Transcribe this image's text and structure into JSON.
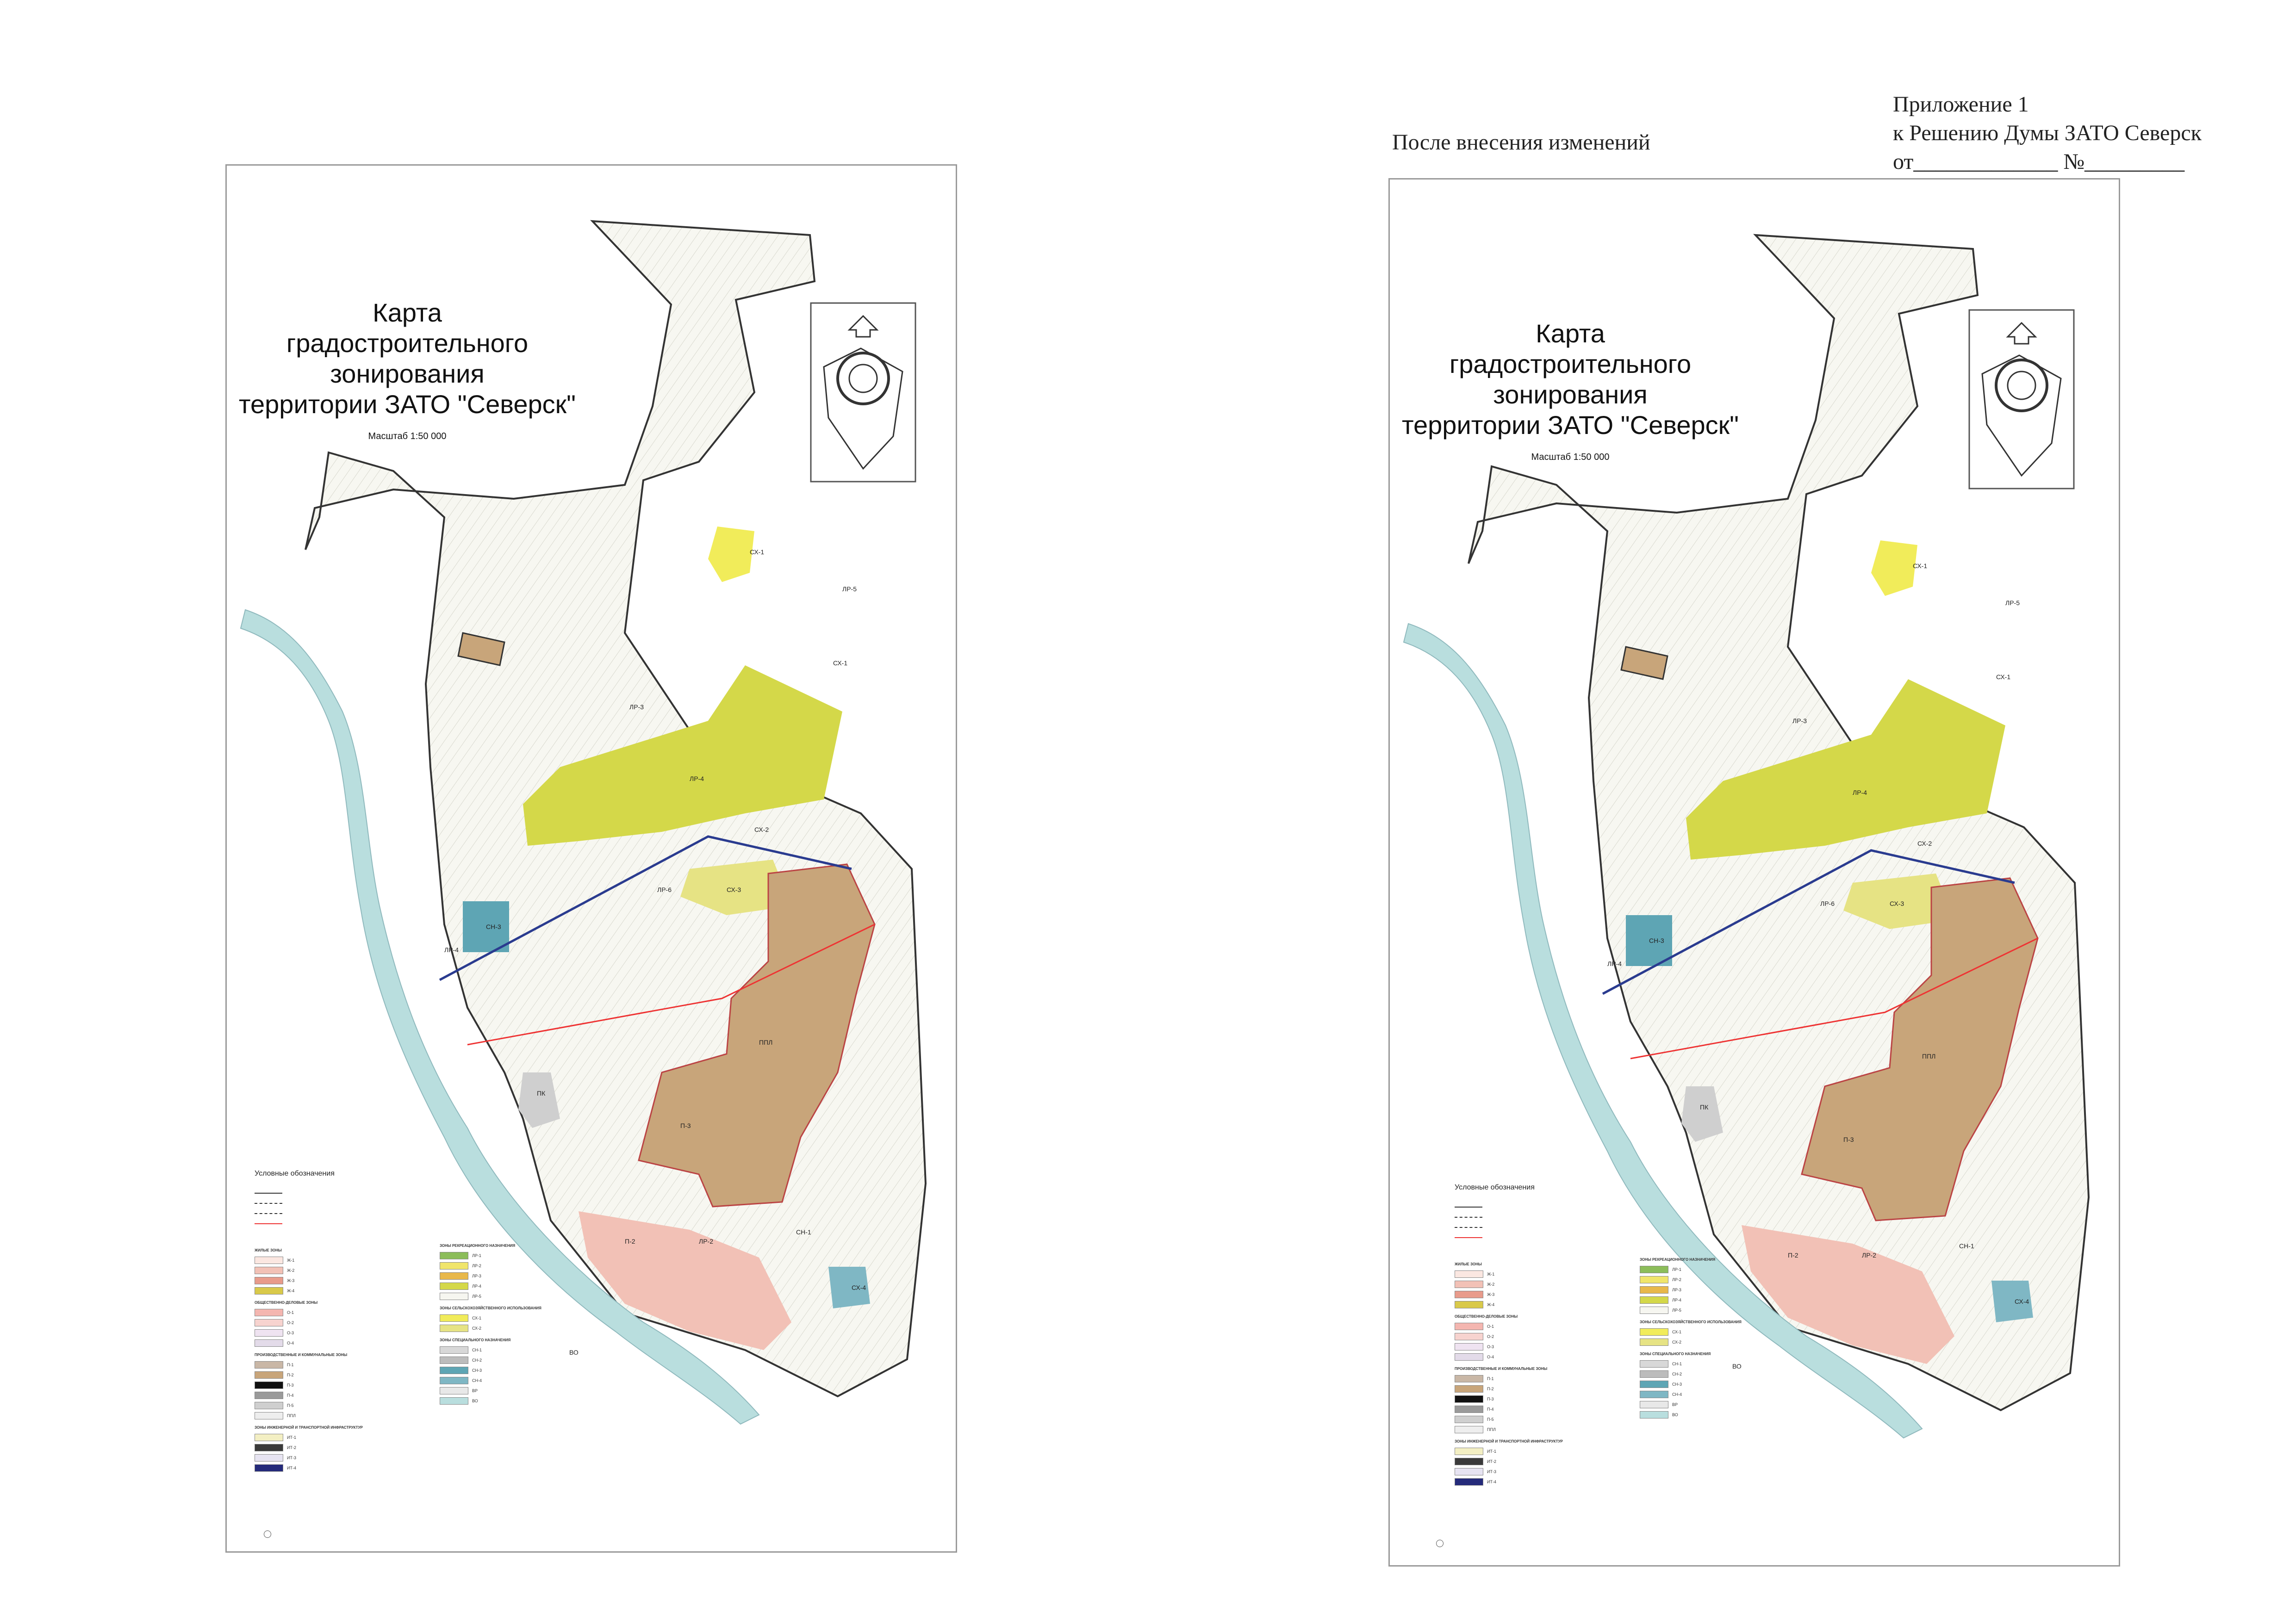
{
  "header": {
    "after_changes": "После внесения изменений",
    "appendix_line1": "Приложение 1",
    "appendix_line2": "к Решению Думы ЗАТО Северск",
    "appendix_line3": "от_____________ №_________"
  },
  "map": {
    "title_line1": "Карта",
    "title_line2": "градостроительного зонирования",
    "title_line3": "территории ЗАТО \"Северск\"",
    "scale": "Масштаб 1:50 000",
    "legend_title": "Условные обозначения",
    "zone_labels": [
      "ЛР-5",
      "СХ-1",
      "ЛР-4",
      "ЛР-3",
      "СХ-2",
      "СХ-3",
      "ЛР-6",
      "СН-3",
      "ЛР-4",
      "ППЛ",
      "П-3",
      "ПК",
      "СХ-4",
      "ЛР-2",
      "ВО",
      "П-2",
      "СН-1",
      "СХ-1"
    ],
    "legend_groups": [
      {
        "title": "Жилые зоны",
        "items": [
          {
            "code": "Ж-1",
            "color": "#fbe7e1"
          },
          {
            "code": "Ж-2",
            "color": "#f2c1b6"
          },
          {
            "code": "Ж-3",
            "color": "#e89b8b"
          },
          {
            "code": "Ж-4",
            "color": "#d9c94a"
          }
        ]
      },
      {
        "title": "Общественно-деловые зоны",
        "items": [
          {
            "code": "О-1",
            "color": "#f4b6b0"
          },
          {
            "code": "О-2",
            "color": "#f7d3cf"
          },
          {
            "code": "О-3",
            "color": "#efe3f1"
          },
          {
            "code": "О-4",
            "color": "#e3dbe9"
          }
        ]
      },
      {
        "title": "Производственные и коммунальные зоны",
        "items": [
          {
            "code": "П-1",
            "color": "#c9b7a6"
          },
          {
            "code": "П-2",
            "color": "#c8a57a"
          },
          {
            "code": "П-3",
            "color": "#111111"
          },
          {
            "code": "П-4",
            "color": "#9a9a9a"
          },
          {
            "code": "П-5",
            "color": "#cfcfcf"
          },
          {
            "code": "ППЛ",
            "color": "#eeeeee"
          }
        ]
      },
      {
        "title": "Зоны инженерной и транспортной инфраструктур",
        "items": [
          {
            "code": "ИТ-1",
            "color": "#f3efc3"
          },
          {
            "code": "ИТ-2",
            "color": "#3a3a3a"
          },
          {
            "code": "ИТ-3",
            "color": "#e7e4f2"
          },
          {
            "code": "ИТ-4",
            "color": "#242a7a"
          }
        ]
      },
      {
        "title": "Зоны рекреационного назначения",
        "items": [
          {
            "code": "ЛР-1",
            "color": "#8cbd5a"
          },
          {
            "code": "ЛР-2",
            "color": "#f0e56b"
          },
          {
            "code": "ЛР-3",
            "color": "#e8b84a"
          },
          {
            "code": "ЛР-4",
            "color": "#d4d849"
          },
          {
            "code": "ЛР-5",
            "color": "#f6f6f0"
          }
        ]
      },
      {
        "title": "Зоны сельскохозяйственного использования",
        "items": [
          {
            "code": "СХ-1",
            "color": "#f1ec5a"
          },
          {
            "code": "СХ-2",
            "color": "#e6e384"
          }
        ]
      },
      {
        "title": "Зоны специального назначения",
        "items": [
          {
            "code": "СН-1",
            "color": "#d8d8d8"
          },
          {
            "code": "СН-2",
            "color": "#bcbcbc"
          },
          {
            "code": "СН-3",
            "color": "#5ea5b4"
          },
          {
            "code": "СН-4",
            "color": "#7fb7c4"
          },
          {
            "code": "ВР",
            "color": "#e8e8e8"
          },
          {
            "code": "ВО",
            "color": "#b9dede"
          }
        ]
      }
    ]
  }
}
